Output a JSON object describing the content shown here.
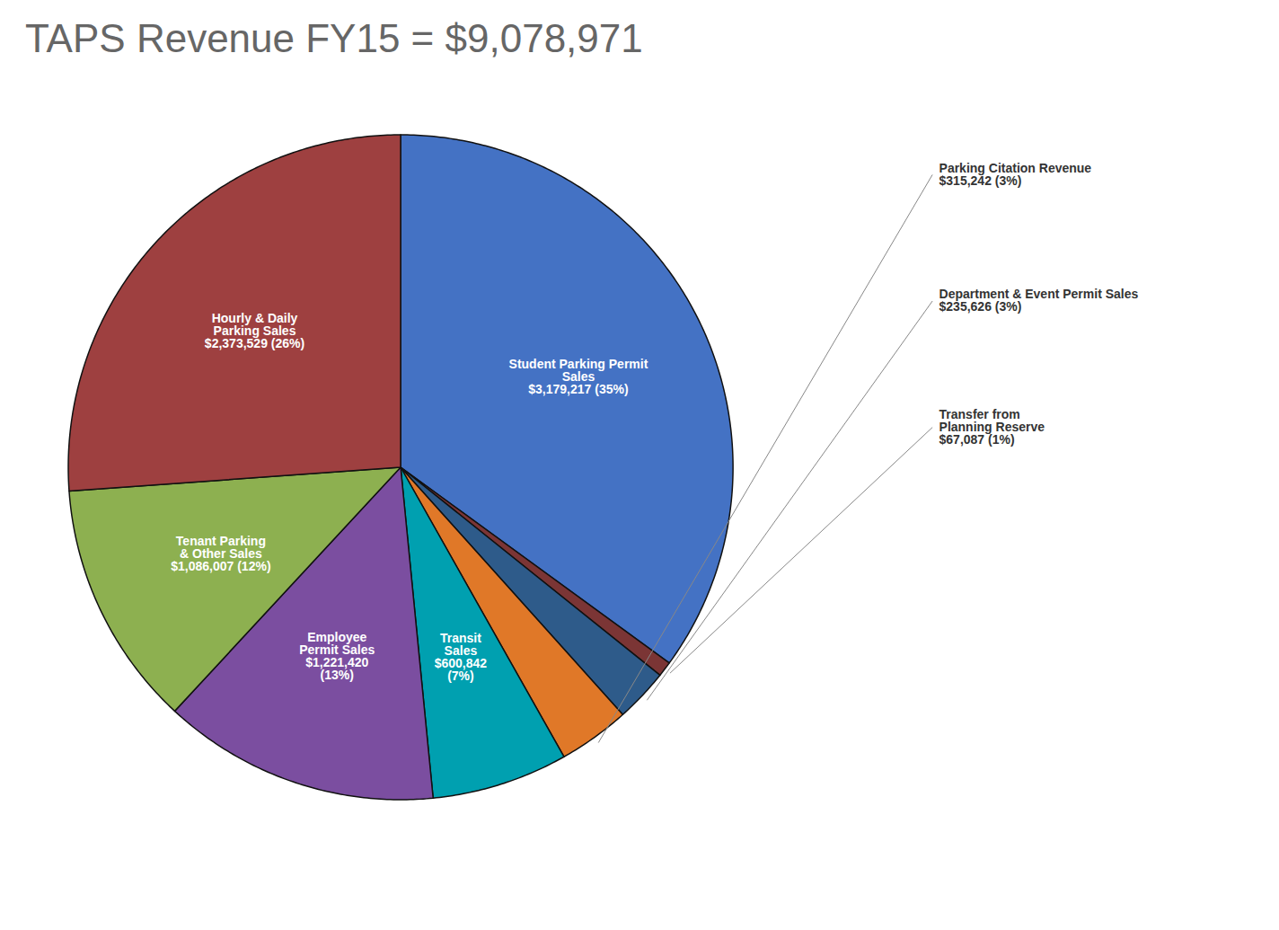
{
  "chart_data": {
    "type": "pie",
    "title": "TAPS Revenue FY15 = $9,078,971",
    "categories": [
      "Student Parking Permit\nSales\n$3,179,217 (35%)",
      "Transfer from\nPlanning Reserve\n$67,087 (1%)",
      "Department & Event Permit Sales\n$235,626 (3%)",
      "Parking Citation Revenue\n$315,242 (3%)",
      "Transit\nSales\n$600,842\n(7%)",
      "Employee\nPermit Sales\n$1,221,420\n(13%)",
      "Tenant Parking\n& Other Sales\n$1,086,007 (12%)",
      "Hourly & Daily\nParking Sales\n$2,373,529 (26%)"
    ],
    "values": [
      3179217,
      67087,
      235626,
      315242,
      600842,
      1221420,
      1086007,
      2373529
    ],
    "colors": [
      "#4472C4",
      "#7B3535",
      "#2E5B8A",
      "#E07828",
      "#00A0B0",
      "#7B4EA0",
      "#8DB050",
      "#9E4040"
    ]
  }
}
